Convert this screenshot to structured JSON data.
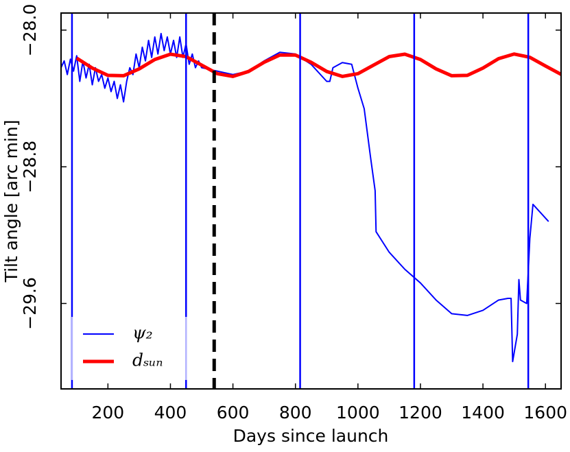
{
  "chart_data": {
    "type": "line",
    "xlabel": "Days since launch",
    "ylabel": "Tilt angle [arc min]",
    "xlim": [
      50,
      1650
    ],
    "ylim": [
      -30.1,
      -27.9
    ],
    "xticks": [
      200,
      400,
      600,
      800,
      1000,
      1200,
      1400,
      1600
    ],
    "yticks": [
      {
        "value": -28.0,
        "label": "−28.0"
      },
      {
        "value": -28.8,
        "label": "−28.8"
      },
      {
        "value": -29.6,
        "label": "−29.6"
      }
    ],
    "legend": "lower left",
    "vlines": {
      "color": "#0000ff",
      "x": [
        85,
        450,
        815,
        1180,
        1545
      ]
    },
    "dashed_vline": {
      "color": "#000000",
      "x": 540
    },
    "series": [
      {
        "name": "ψ₂",
        "color": "#0000ff",
        "width": 2,
        "x": [
          50,
          60,
          70,
          80,
          90,
          100,
          110,
          120,
          130,
          140,
          150,
          160,
          170,
          180,
          190,
          200,
          210,
          220,
          230,
          240,
          250,
          260,
          270,
          280,
          290,
          300,
          310,
          320,
          330,
          340,
          350,
          360,
          370,
          380,
          390,
          400,
          410,
          420,
          430,
          440,
          450,
          460,
          470,
          480,
          490,
          500,
          550,
          600,
          650,
          700,
          750,
          800,
          850,
          900,
          910,
          920,
          950,
          980,
          1000,
          1020,
          1040,
          1055,
          1058,
          1100,
          1150,
          1200,
          1250,
          1300,
          1350,
          1400,
          1450,
          1480,
          1490,
          1495,
          1510,
          1515,
          1520,
          1540,
          1550,
          1560,
          1570,
          1610
        ],
        "values": [
          -28.22,
          -28.18,
          -28.26,
          -28.17,
          -28.24,
          -28.15,
          -28.3,
          -28.18,
          -28.28,
          -28.2,
          -28.32,
          -28.22,
          -28.3,
          -28.26,
          -28.34,
          -28.28,
          -28.36,
          -28.3,
          -28.4,
          -28.32,
          -28.42,
          -28.3,
          -28.22,
          -28.26,
          -28.14,
          -28.22,
          -28.1,
          -28.18,
          -28.06,
          -28.16,
          -28.04,
          -28.14,
          -28.02,
          -28.12,
          -28.04,
          -28.14,
          -28.06,
          -28.16,
          -28.04,
          -28.16,
          -28.08,
          -28.2,
          -28.14,
          -28.22,
          -28.18,
          -28.22,
          -28.24,
          -28.26,
          -28.24,
          -28.18,
          -28.13,
          -28.14,
          -28.2,
          -28.3,
          -28.3,
          -28.22,
          -28.19,
          -28.2,
          -28.34,
          -28.46,
          -28.74,
          -28.94,
          -29.18,
          -29.3,
          -29.4,
          -29.48,
          -29.58,
          -29.66,
          -29.67,
          -29.64,
          -29.58,
          -29.57,
          -29.57,
          -29.94,
          -29.78,
          -29.46,
          -29.58,
          -29.6,
          -29.22,
          -29.02,
          -29.04,
          -29.12
        ]
      },
      {
        "name": "dₛᵤₙ",
        "color": "#ff0000",
        "width": 5,
        "x": [
          100,
          150,
          200,
          250,
          300,
          350,
          400,
          450,
          500,
          550,
          600,
          650,
          700,
          750,
          800,
          850,
          900,
          950,
          1000,
          1050,
          1100,
          1150,
          1200,
          1250,
          1300,
          1350,
          1400,
          1450,
          1500,
          1550,
          1600,
          1650
        ],
        "values": [
          -28.164,
          -28.222,
          -28.265,
          -28.267,
          -28.227,
          -28.172,
          -28.141,
          -28.155,
          -28.205,
          -28.255,
          -28.271,
          -28.242,
          -28.188,
          -28.146,
          -28.146,
          -28.188,
          -28.242,
          -28.271,
          -28.255,
          -28.205,
          -28.155,
          -28.141,
          -28.172,
          -28.227,
          -28.267,
          -28.265,
          -28.222,
          -28.167,
          -28.14,
          -28.159,
          -28.21,
          -28.259
        ]
      }
    ]
  }
}
